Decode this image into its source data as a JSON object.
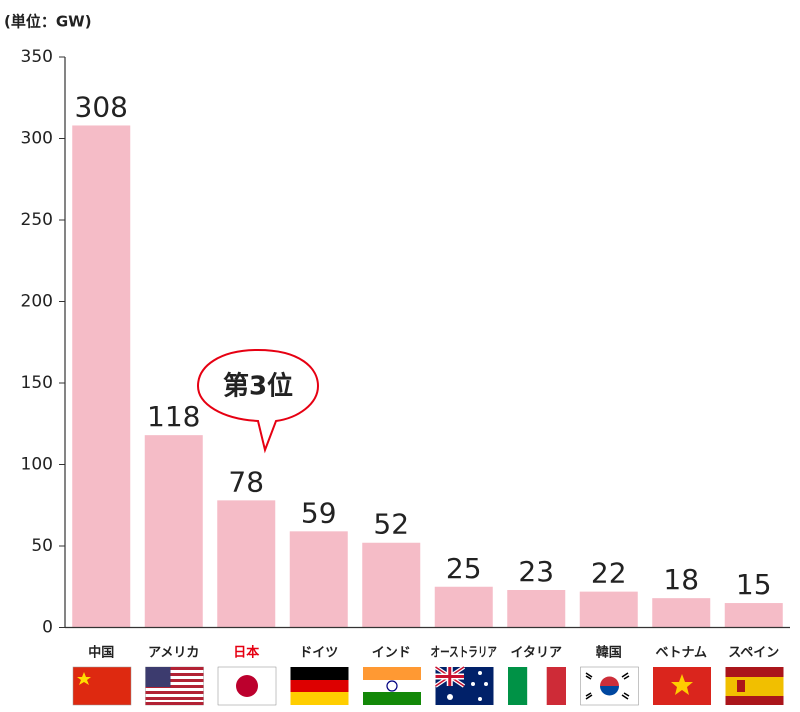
{
  "chart_data": {
    "type": "bar",
    "unit_label": "(単位：GW)",
    "annotation": "第3位",
    "categories": [
      "中国",
      "アメリカ",
      "日本",
      "ドイツ",
      "インド",
      "オーストラリア",
      "イタリア",
      "韓国",
      "ベトナム",
      "スペイン"
    ],
    "values": [
      308,
      118,
      78,
      59,
      52,
      25,
      23,
      22,
      18,
      15
    ],
    "color": "#f5bcc7",
    "highlight_index": 2,
    "highlight_color": "#e60012",
    "ylim": [
      0,
      350
    ],
    "yticks": [
      0,
      50,
      100,
      150,
      200,
      250,
      300,
      350
    ],
    "grid": false
  }
}
